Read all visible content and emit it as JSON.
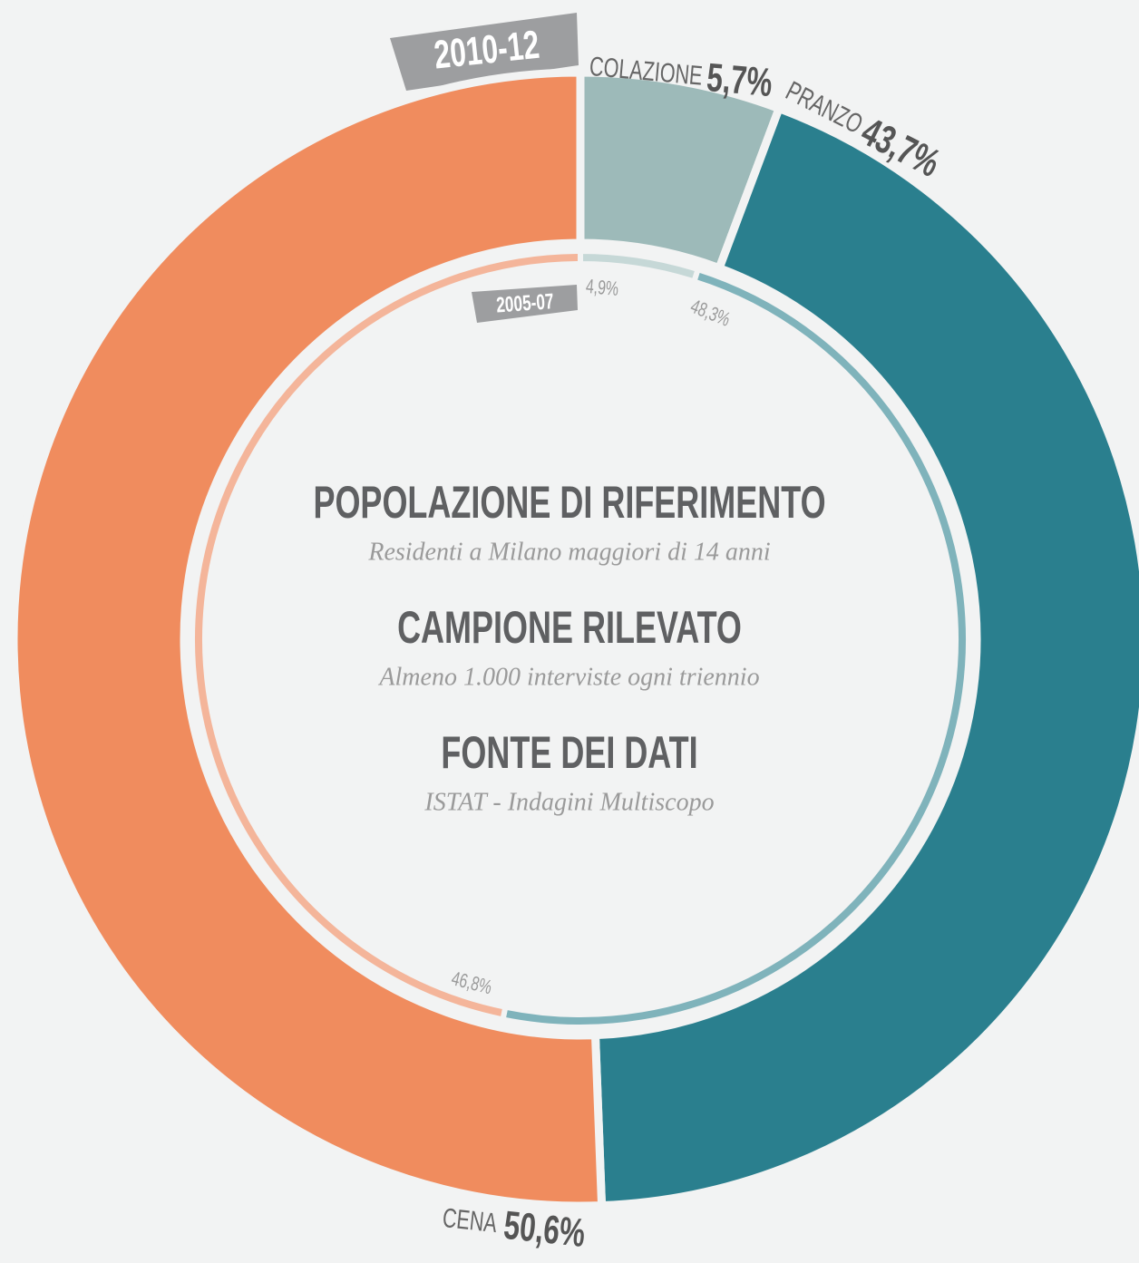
{
  "chart_data": {
    "type": "donut",
    "categories": [
      "COLAZIONE",
      "PRANZO",
      "CENA"
    ],
    "series": [
      {
        "name": "2010-12",
        "colors": [
          "#9dbab9",
          "#2a7f8e",
          "#f08c5e"
        ],
        "values": [
          5.7,
          43.7,
          50.6
        ],
        "value_labels": [
          "5,7%",
          "43,7%",
          "50,6%"
        ]
      },
      {
        "name": "2005-07",
        "colors": [
          "#c6d8d7",
          "#7fb3bb",
          "#f4b59a"
        ],
        "values": [
          4.9,
          48.3,
          46.8
        ],
        "value_labels": [
          "4,9%",
          "48,3%",
          "46,8%"
        ]
      }
    ],
    "center_text": [
      {
        "heading": "POPOLAZIONE DI RIFERIMENTO",
        "text": "Residenti a Milano maggiori di 14 anni"
      },
      {
        "heading": "CAMPIONE RILEVATO",
        "text": "Almeno 1.000 interviste ogni triennio"
      },
      {
        "heading": "FONTE DEI DATI",
        "text": "ISTAT - Indagini Multiscopo"
      }
    ]
  }
}
